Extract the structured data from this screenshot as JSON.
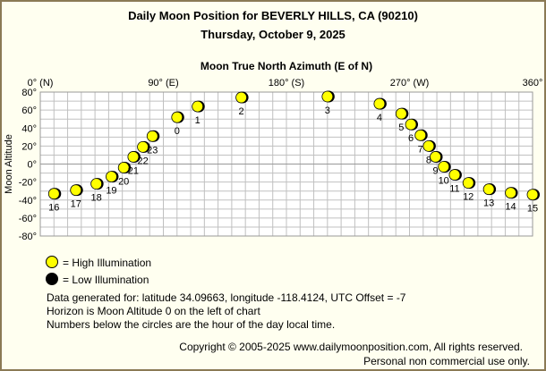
{
  "header": {
    "title": "Daily Moon Position for BEVERLY HILLS, CA (90210)",
    "date": "Thursday, October 9, 2025"
  },
  "legend": {
    "high_label": "= High Illumination",
    "low_label": "= Low Illumination"
  },
  "info": {
    "line1": "Data generated for: latitude 34.09663, longitude -118.4124, UTC Offset = -7",
    "line2": "Horizon is Moon Altitude 0 on the left of chart",
    "line3": "Numbers below the circles are the hour of the day local time."
  },
  "footer": {
    "copyright": "Copyright © 2005-2025 www.dailymoonposition.com, All rights reserved.",
    "notice": "Personal non commercial use only."
  },
  "colors": {
    "high": "#ffff00",
    "low": "#000000",
    "grid": "#c0c0c0",
    "background": "#fffff0"
  },
  "chart_data": {
    "type": "scatter",
    "title": "Moon True North Azimuth (E of N)",
    "ylabel": "Moon Altitude",
    "xlim": [
      0,
      360
    ],
    "ylim": [
      -80,
      80
    ],
    "x_ticks": [
      {
        "value": 0,
        "label": "0° (N)"
      },
      {
        "value": 90,
        "label": "90° (E)"
      },
      {
        "value": 180,
        "label": "180° (S)"
      },
      {
        "value": 270,
        "label": "270° (W)"
      },
      {
        "value": 360,
        "label": "360°"
      }
    ],
    "y_ticks": [
      {
        "value": 80,
        "label": "80°"
      },
      {
        "value": 60,
        "label": "60°"
      },
      {
        "value": 40,
        "label": "40°"
      },
      {
        "value": 20,
        "label": "20°"
      },
      {
        "value": 0,
        "label": "0°"
      },
      {
        "value": -20,
        "label": "-20°"
      },
      {
        "value": -40,
        "label": "-40°"
      },
      {
        "value": -60,
        "label": "-60°"
      },
      {
        "value": -80,
        "label": "-80°"
      }
    ],
    "grid": true,
    "points": [
      {
        "hour": "0",
        "az": 100,
        "alt": 52
      },
      {
        "hour": "1",
        "az": 115,
        "alt": 64
      },
      {
        "hour": "2",
        "az": 147,
        "alt": 74
      },
      {
        "hour": "3",
        "az": 210,
        "alt": 75
      },
      {
        "hour": "4",
        "az": 248,
        "alt": 67
      },
      {
        "hour": "5",
        "az": 264,
        "alt": 56
      },
      {
        "hour": "6",
        "az": 271,
        "alt": 44
      },
      {
        "hour": "7",
        "az": 278,
        "alt": 32
      },
      {
        "hour": "8",
        "az": 284,
        "alt": 20
      },
      {
        "hour": "9",
        "az": 289,
        "alt": 8
      },
      {
        "hour": "10",
        "az": 295,
        "alt": -3
      },
      {
        "hour": "11",
        "az": 303,
        "alt": -12
      },
      {
        "hour": "12",
        "az": 313,
        "alt": -21
      },
      {
        "hour": "13",
        "az": 328,
        "alt": -28
      },
      {
        "hour": "14",
        "az": 344,
        "alt": -32
      },
      {
        "hour": "15",
        "az": 360,
        "alt": -34
      },
      {
        "hour": "16",
        "az": 10,
        "alt": -33
      },
      {
        "hour": "17",
        "az": 26,
        "alt": -29
      },
      {
        "hour": "18",
        "az": 41,
        "alt": -22
      },
      {
        "hour": "19",
        "az": 52,
        "alt": -14
      },
      {
        "hour": "20",
        "az": 61,
        "alt": -4
      },
      {
        "hour": "21",
        "az": 68,
        "alt": 8
      },
      {
        "hour": "22",
        "az": 75,
        "alt": 19
      },
      {
        "hour": "23",
        "az": 82,
        "alt": 31
      }
    ]
  }
}
